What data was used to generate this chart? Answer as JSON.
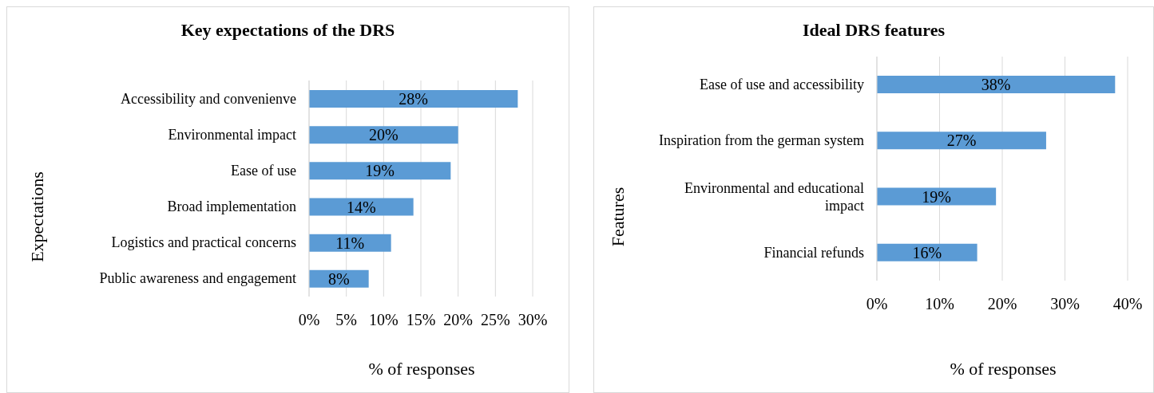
{
  "chart_data": [
    {
      "type": "bar",
      "orientation": "horizontal",
      "title": "Key expectations of the DRS",
      "xlabel": "% of responses",
      "ylabel": "Expectations",
      "categories": [
        "Accessibility and convenienve",
        "Environmental impact",
        "Ease of use",
        "Broad implementation",
        "Logistics and practical concerns",
        "Public awareness and engagement"
      ],
      "values": [
        28,
        20,
        19,
        14,
        11,
        8
      ],
      "color": "#5b9bd5",
      "value_labels": [
        "28%",
        "20%",
        "19%",
        "14%",
        "11%",
        "8%"
      ],
      "xlim": [
        0,
        30
      ],
      "xticks": [
        {
          "value": 0,
          "label": "0%"
        },
        {
          "value": 5,
          "label": "5%"
        },
        {
          "value": 10,
          "label": "10%"
        },
        {
          "value": 15,
          "label": "15%"
        },
        {
          "value": 20,
          "label": "20%"
        },
        {
          "value": 25,
          "label": "25%"
        },
        {
          "value": 30,
          "label": "30%"
        }
      ],
      "grid": "x",
      "legend": false
    },
    {
      "type": "bar",
      "orientation": "horizontal",
      "title": "Ideal DRS features",
      "xlabel": "% of responses",
      "ylabel": "Features",
      "categories": [
        "Ease of use and accessibility",
        "Inspiration from the german system",
        "Environmental and educational impact",
        "Financial refunds"
      ],
      "values": [
        38,
        27,
        19,
        16
      ],
      "color": "#5b9bd5",
      "value_labels": [
        "38%",
        "27%",
        "19%",
        "16%"
      ],
      "xlim": [
        0,
        40
      ],
      "xticks": [
        {
          "value": 0,
          "label": "0%"
        },
        {
          "value": 10,
          "label": "10%"
        },
        {
          "value": 20,
          "label": "20%"
        },
        {
          "value": 30,
          "label": "30%"
        },
        {
          "value": 40,
          "label": "40%"
        }
      ],
      "grid": "x",
      "legend": false
    }
  ]
}
